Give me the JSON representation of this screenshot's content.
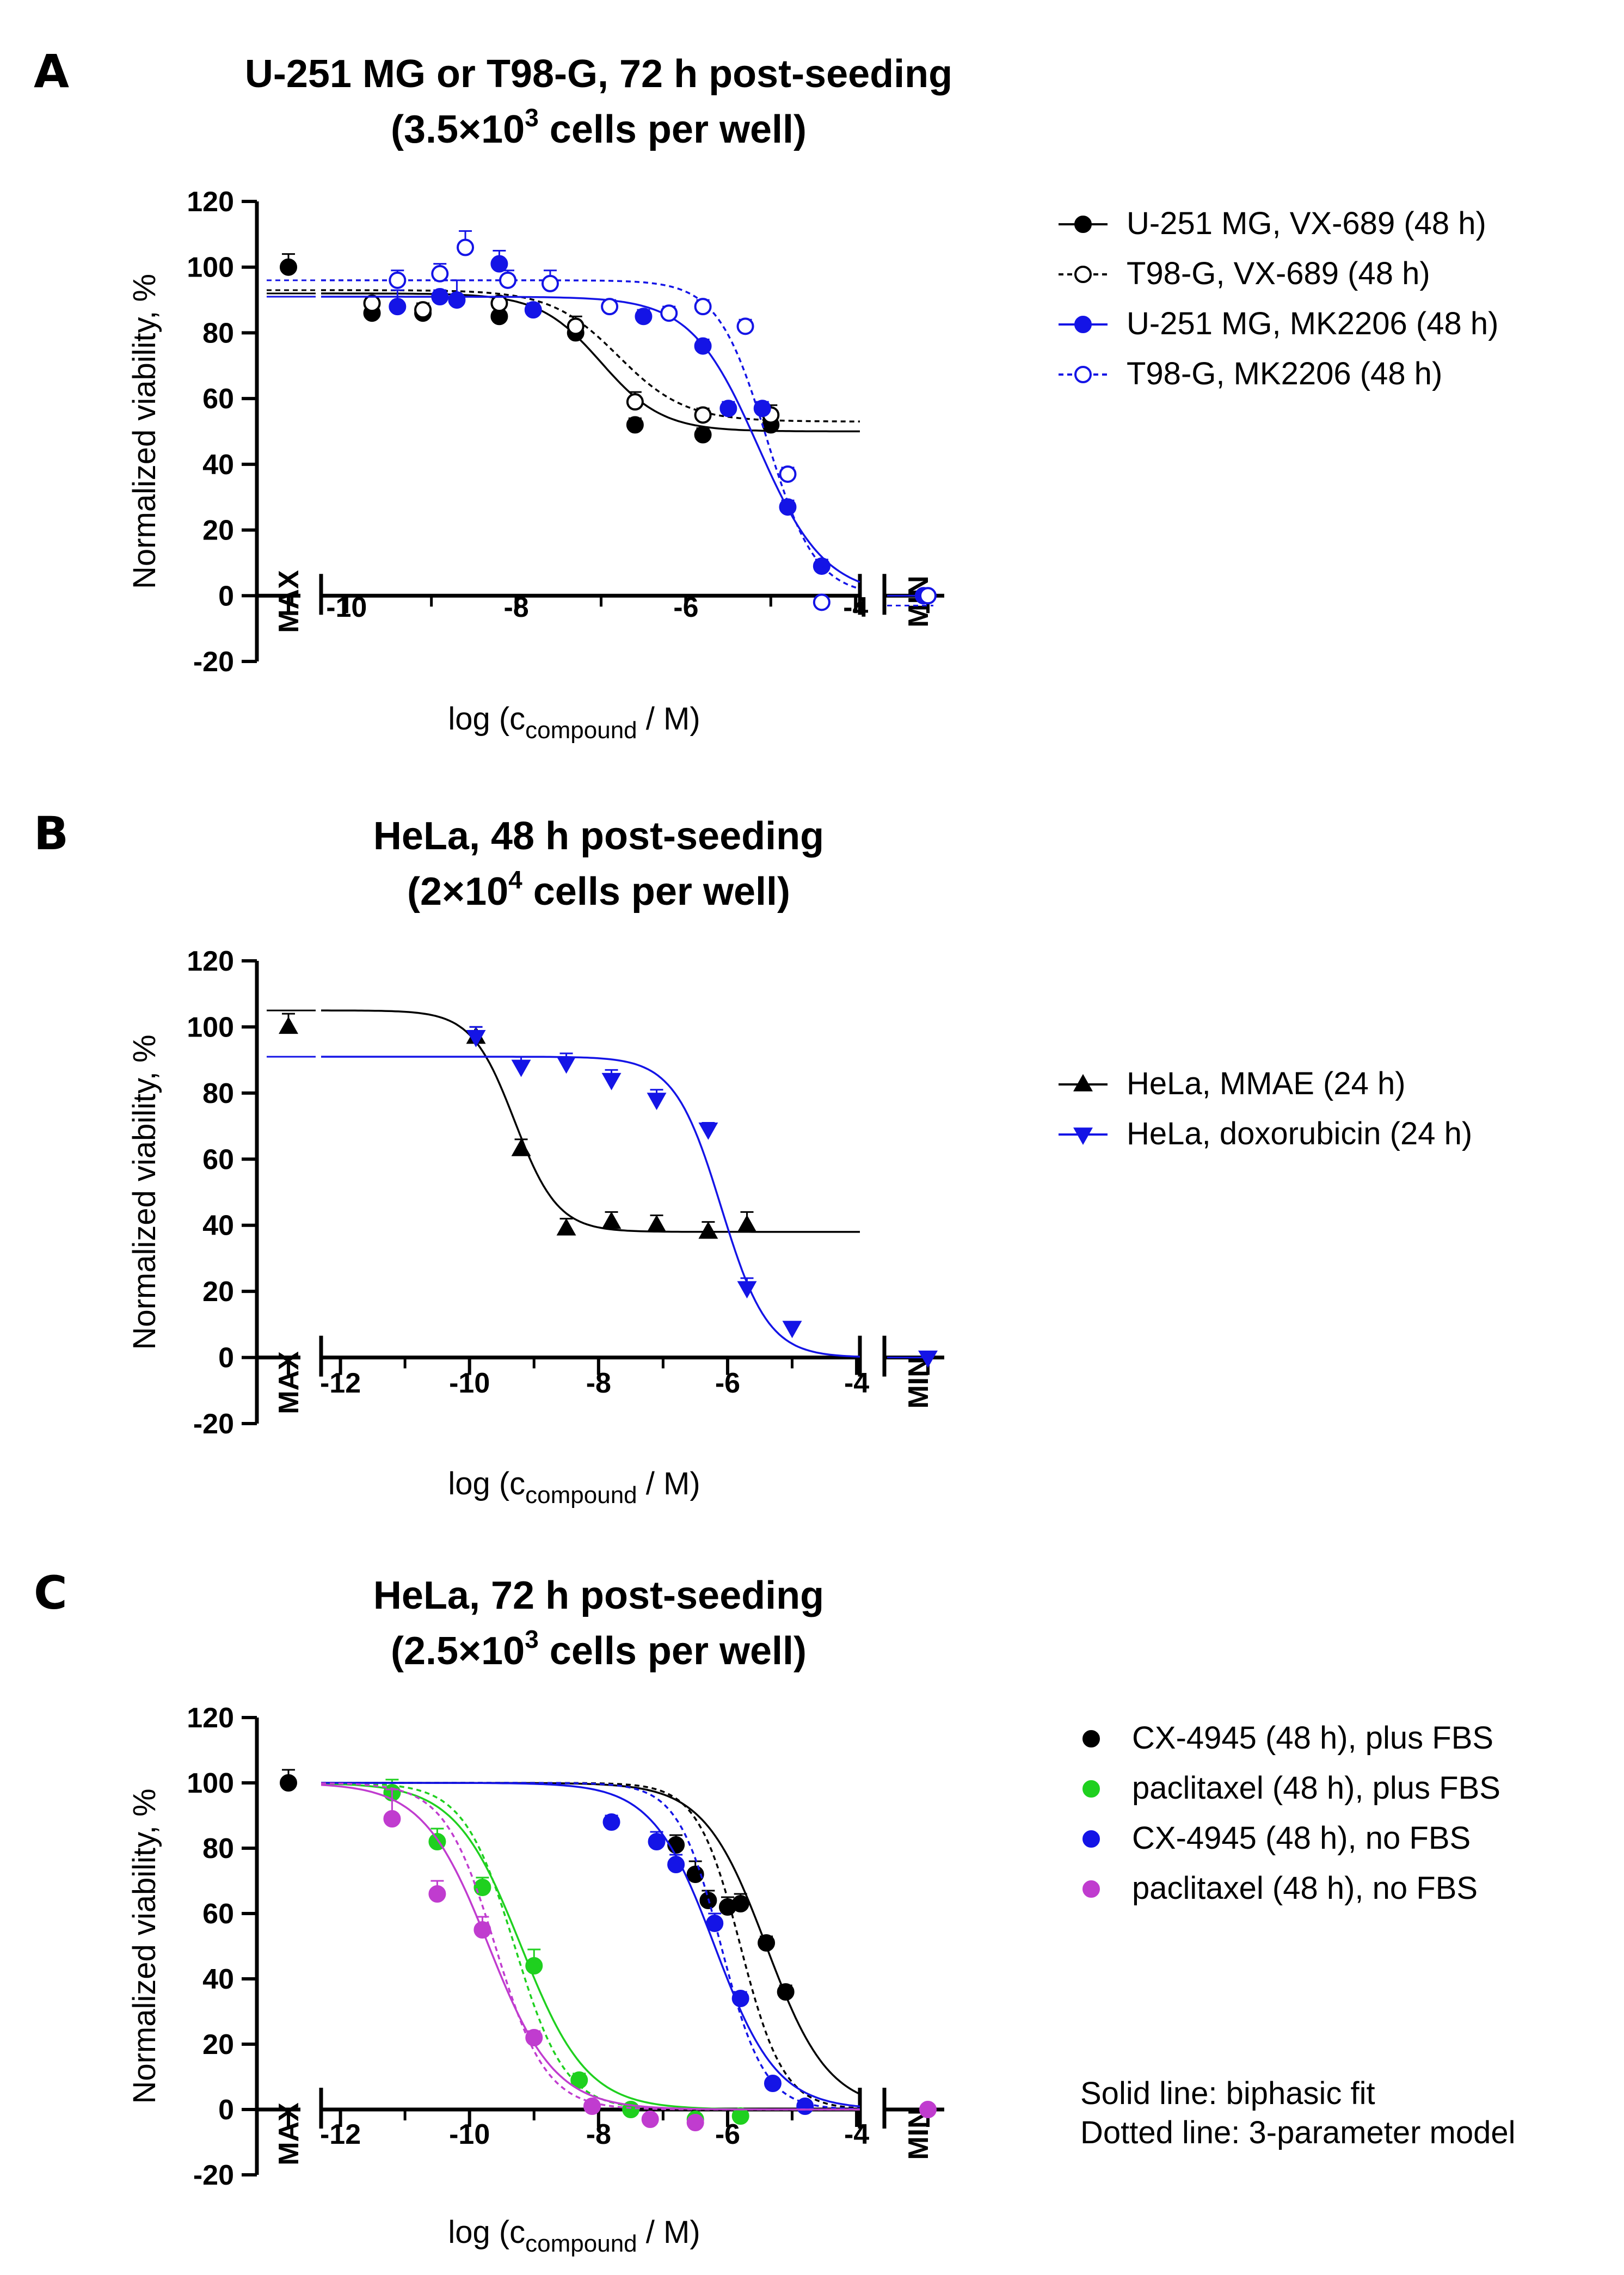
{
  "chart_data": [
    {
      "panel": "A",
      "type": "scatter",
      "title_line1": "U-251 MG or T98-G, 72 h post-seeding",
      "title_line2_prefix": "(3.5×10",
      "title_line2_sup": "3",
      "title_line2_suffix": " cells per well)",
      "ylabel": "Normalized viability, %",
      "xlabel_prefix": "log (c",
      "xlabel_sub": "compound",
      "xlabel_suffix": " / M)",
      "max_label": "MAX",
      "min_label": "MIN",
      "xlim": [
        -10.3,
        -3.95
      ],
      "ylim": [
        -20,
        120
      ],
      "x_ticks": [
        -10,
        -8,
        -6,
        -4
      ],
      "y_ticks": [
        -20,
        0,
        20,
        40,
        60,
        80,
        100,
        120
      ],
      "series": [
        {
          "name": "U-251 MG, VX-689 (48 h)",
          "color": "#000000",
          "marker": "circle",
          "filled": true,
          "dashed": false,
          "max_value": 100,
          "min_value": 0,
          "points": [
            [
              -9.7,
              86
            ],
            [
              -9.1,
              86
            ],
            [
              -8.2,
              85
            ],
            [
              -7.3,
              80
            ],
            [
              -6.6,
              52
            ],
            [
              -5.8,
              49
            ],
            [
              -5.0,
              52
            ]
          ],
          "errors": [
            2,
            2,
            3,
            2,
            2,
            2,
            2
          ],
          "fit": {
            "bottom": 50,
            "top": 92,
            "ec50": -7.0,
            "hill": 1.2
          },
          "fit_max_level": 92,
          "fit_min_level": 0
        },
        {
          "name": "T98-G, VX-689 (48 h)",
          "color": "#000000",
          "marker": "circle",
          "filled": false,
          "dashed": true,
          "max_value": 100,
          "min_value": 0,
          "points": [
            [
              -9.7,
              89
            ],
            [
              -9.1,
              87
            ],
            [
              -8.2,
              89
            ],
            [
              -7.3,
              82
            ],
            [
              -6.6,
              59
            ],
            [
              -5.8,
              55
            ],
            [
              -5.0,
              55
            ]
          ],
          "errors": [
            2,
            2,
            2,
            3,
            3,
            2,
            3
          ],
          "fit": {
            "bottom": 53,
            "top": 93,
            "ec50": -6.8,
            "hill": 1.1
          },
          "fit_max_level": 93,
          "fit_min_level": 0
        },
        {
          "name": "U-251 MG, MK2206 (48 h)",
          "color": "#1414e6",
          "marker": "circle",
          "filled": true,
          "dashed": false,
          "max_value": 100,
          "min_value": 0,
          "points": [
            [
              -9.4,
              88
            ],
            [
              -8.9,
              91
            ],
            [
              -8.7,
              90
            ],
            [
              -8.2,
              101
            ],
            [
              -7.8,
              87
            ],
            [
              -6.5,
              85
            ],
            [
              -5.8,
              76
            ],
            [
              -5.5,
              57
            ],
            [
              -5.1,
              57
            ],
            [
              -4.8,
              27
            ],
            [
              -4.4,
              9
            ],
            [
              -3.2,
              0
            ]
          ],
          "errors": [
            5,
            2,
            6,
            4,
            2,
            2,
            2,
            2,
            2,
            2,
            2,
            1
          ],
          "fit": {
            "bottom": 0,
            "top": 91,
            "ec50": -5.15,
            "hill": 1.1
          },
          "fit_max_level": 91,
          "fit_min_level": 0
        },
        {
          "name": "T98-G, MK2206 (48 h)",
          "color": "#1414e6",
          "marker": "circle",
          "filled": false,
          "dashed": true,
          "max_value": 100,
          "min_value": 0,
          "points": [
            [
              -9.4,
              96
            ],
            [
              -8.9,
              98
            ],
            [
              -8.6,
              106
            ],
            [
              -8.1,
              96
            ],
            [
              -7.6,
              95
            ],
            [
              -6.9,
              88
            ],
            [
              -6.2,
              86
            ],
            [
              -5.8,
              88
            ],
            [
              -5.3,
              82
            ],
            [
              -4.8,
              37
            ],
            [
              -4.4,
              -2
            ]
          ],
          "errors": [
            3,
            3,
            5,
            3,
            4,
            2,
            2,
            2,
            2,
            2,
            1
          ],
          "fit": {
            "bottom": 0,
            "top": 96,
            "ec50": -5.05,
            "hill": 1.5
          },
          "fit_max_level": 96,
          "fit_min_level": -3
        }
      ]
    },
    {
      "panel": "B",
      "type": "scatter",
      "title_line1": "HeLa, 48 h post-seeding",
      "title_line2_prefix": "(2×10",
      "title_line2_sup": "4",
      "title_line2_suffix": " cells per well)",
      "ylabel": "Normalized viability, %",
      "xlabel_prefix": "log (c",
      "xlabel_sub": "compound",
      "xlabel_suffix": " / M)",
      "max_label": "MAX",
      "min_label": "MIN",
      "xlim": [
        -12.3,
        -3.95
      ],
      "ylim": [
        -20,
        120
      ],
      "x_ticks": [
        -12,
        -10,
        -8,
        -6,
        -4
      ],
      "y_ticks": [
        -20,
        0,
        20,
        40,
        60,
        80,
        100,
        120
      ],
      "series": [
        {
          "name": "HeLa, MMAE (24 h)",
          "color": "#000000",
          "marker": "triangle-up",
          "filled": true,
          "dashed": false,
          "max_value": 100,
          "min_value": 0,
          "points": [
            [
              -9.9,
              97
            ],
            [
              -9.2,
              63
            ],
            [
              -8.5,
              39
            ],
            [
              -7.8,
              41
            ],
            [
              -7.1,
              40
            ],
            [
              -6.3,
              38
            ],
            [
              -5.7,
              40
            ]
          ],
          "errors": [
            3,
            3,
            3,
            3,
            3,
            3,
            4
          ],
          "fit": {
            "bottom": 38,
            "top": 105,
            "ec50": -9.3,
            "hill": 1.3
          },
          "fit_max_level": 105,
          "fit_min_level": 0
        },
        {
          "name": "HeLa, doxorubicin (24 h)",
          "color": "#1414e6",
          "marker": "triangle-down",
          "filled": true,
          "dashed": false,
          "max_value": 100,
          "min_value": 0,
          "points": [
            [
              -9.9,
              97
            ],
            [
              -9.2,
              88
            ],
            [
              -8.5,
              89
            ],
            [
              -7.8,
              84
            ],
            [
              -7.1,
              78
            ],
            [
              -6.3,
              69
            ],
            [
              -5.7,
              21
            ],
            [
              -5.0,
              9
            ]
          ],
          "errors": [
            3,
            3,
            3,
            3,
            3,
            2,
            3,
            1
          ],
          "fit": {
            "bottom": 0,
            "top": 91,
            "ec50": -6.1,
            "hill": 1.2
          },
          "fit_max_level": 91,
          "fit_min_level": 0
        }
      ]
    },
    {
      "panel": "C",
      "type": "scatter",
      "title_line1": "HeLa, 72 h post-seeding",
      "title_line2_prefix": "(2.5×10",
      "title_line2_sup": "3",
      "title_line2_suffix": " cells per well)",
      "ylabel": "Normalized viability, %",
      "xlabel_prefix": "log (c",
      "xlabel_sub": "compound",
      "xlabel_suffix": " / M)",
      "max_label": "MAX",
      "min_label": "MIN",
      "xlim": [
        -12.3,
        -3.95
      ],
      "ylim": [
        -20,
        120
      ],
      "x_ticks": [
        -12,
        -10,
        -8,
        -6,
        -4
      ],
      "y_ticks": [
        -20,
        0,
        20,
        40,
        60,
        80,
        100,
        120
      ],
      "legend_notes": [
        "Solid line: biphasic fit",
        "Dotted line: 3-parameter model"
      ],
      "series": [
        {
          "name": "CX-4945 (48 h), plus FBS",
          "color": "#000000",
          "marker": "circle",
          "filled": true,
          "dashed": false,
          "max_value": 100,
          "min_value": 0,
          "points": [
            [
              -6.8,
              81
            ],
            [
              -6.5,
              72
            ],
            [
              -6.3,
              64
            ],
            [
              -6.0,
              62
            ],
            [
              -5.8,
              63
            ],
            [
              -5.4,
              51
            ],
            [
              -5.1,
              36
            ]
          ],
          "errors": [
            3,
            4,
            3,
            3,
            3,
            2,
            2
          ],
          "fit": {
            "bottom": 0,
            "top": 100,
            "ec50": -5.4,
            "hill": 0.9
          },
          "fit2": {
            "bottom": 0,
            "top": 100,
            "ec50": -5.8,
            "hill": 1.3
          }
        },
        {
          "name": "paclitaxel (48 h), plus FBS",
          "color": "#1fd01f",
          "marker": "circle",
          "filled": true,
          "dashed": false,
          "max_value": 100,
          "min_value": 0,
          "points": [
            [
              -11.2,
              97
            ],
            [
              -10.5,
              82
            ],
            [
              -9.8,
              68
            ],
            [
              -9.0,
              44
            ],
            [
              -8.3,
              9
            ],
            [
              -7.5,
              0
            ],
            [
              -6.5,
              -3
            ],
            [
              -5.8,
              -2
            ]
          ],
          "errors": [
            4,
            4,
            3,
            5,
            2,
            1,
            1,
            1
          ],
          "fit": {
            "bottom": 0,
            "top": 100,
            "ec50": -9.2,
            "hill": 0.85
          },
          "fit2": {
            "bottom": 0,
            "top": 100,
            "ec50": -9.3,
            "hill": 1.1
          }
        },
        {
          "name": "CX-4945 (48 h), no FBS",
          "color": "#1414e6",
          "marker": "circle",
          "filled": true,
          "dashed": false,
          "max_value": 100,
          "min_value": 0,
          "points": [
            [
              -7.8,
              88
            ],
            [
              -7.1,
              82
            ],
            [
              -6.8,
              75
            ],
            [
              -6.2,
              57
            ],
            [
              -5.8,
              34
            ],
            [
              -5.3,
              8
            ],
            [
              -4.8,
              1
            ]
          ],
          "errors": [
            2,
            3,
            3,
            3,
            2,
            1,
            1
          ],
          "fit": {
            "bottom": 0,
            "top": 100,
            "ec50": -6.2,
            "hill": 0.9
          },
          "fit2": {
            "bottom": 0,
            "top": 100,
            "ec50": -6.1,
            "hill": 1.3
          }
        },
        {
          "name": "paclitaxel (48 h), no FBS",
          "color": "#c03ccf",
          "marker": "circle",
          "filled": true,
          "dashed": false,
          "max_value": 100,
          "min_value": 0,
          "points": [
            [
              -11.2,
              89
            ],
            [
              -10.5,
              66
            ],
            [
              -9.8,
              55
            ],
            [
              -9.0,
              22
            ],
            [
              -8.1,
              1
            ],
            [
              -7.2,
              -3
            ],
            [
              -6.5,
              -4
            ]
          ],
          "errors": [
            9,
            4,
            4,
            2,
            1,
            1,
            1
          ],
          "fit": {
            "bottom": 0,
            "top": 100,
            "ec50": -9.7,
            "hill": 0.85
          },
          "fit2": {
            "bottom": 0,
            "top": 100,
            "ec50": -9.6,
            "hill": 1.1
          }
        }
      ]
    }
  ]
}
